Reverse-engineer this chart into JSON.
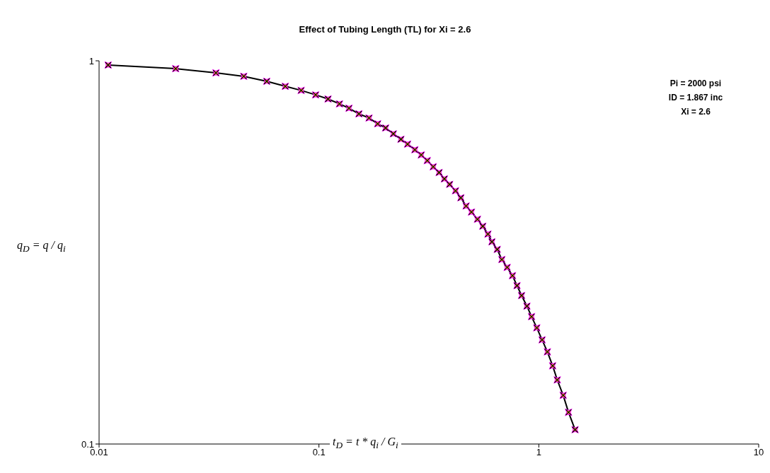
{
  "chart_data": {
    "type": "line",
    "title": "Effect of Tubing Length (TL) for Xi = 2.6",
    "xlabel": "t$_{D}$ = t * q$_{i}$ / G$_{i}$",
    "ylabel": "q$_{D}$ = q / q$_{i}$",
    "log": "xy",
    "xlim": [
      0.01,
      10
    ],
    "xticks": [
      0.01,
      0.1,
      1,
      10
    ],
    "ylim": [
      0.1,
      1
    ],
    "yticks": [
      0.1,
      1
    ],
    "grid": false,
    "annotations": [
      "Pi = 2000 psi",
      "ID = 1.867 inc",
      "Xi = 2.6"
    ],
    "series": [
      {
        "color": "#000000",
        "marker": "cross",
        "line_style": "solid",
        "x": [
          0.011,
          0.0223,
          0.034,
          0.0455,
          0.0579,
          0.0703,
          0.083,
          0.0966,
          0.11,
          0.124,
          0.137,
          0.152,
          0.169,
          0.185,
          0.201,
          0.218,
          0.236,
          0.253,
          0.273,
          0.292,
          0.311,
          0.331,
          0.352,
          0.372,
          0.393,
          0.418,
          0.442,
          0.467,
          0.494,
          0.526,
          0.556,
          0.587,
          0.612,
          0.647,
          0.679,
          0.718,
          0.759,
          0.796,
          0.835,
          0.883,
          0.927,
          0.979,
          1.035,
          1.094,
          1.156,
          1.213,
          1.291,
          1.365,
          1.462
        ],
        "values": [
          0.975,
          0.954,
          0.93,
          0.911,
          0.884,
          0.858,
          0.837,
          0.815,
          0.795,
          0.772,
          0.752,
          0.727,
          0.709,
          0.685,
          0.668,
          0.645,
          0.624,
          0.606,
          0.586,
          0.568,
          0.549,
          0.529,
          0.511,
          0.492,
          0.476,
          0.458,
          0.439,
          0.418,
          0.403,
          0.386,
          0.37,
          0.353,
          0.337,
          0.322,
          0.303,
          0.289,
          0.275,
          0.259,
          0.244,
          0.229,
          0.215,
          0.201,
          0.187,
          0.174,
          0.16,
          0.147,
          0.134,
          0.121,
          0.109
        ]
      }
    ]
  }
}
